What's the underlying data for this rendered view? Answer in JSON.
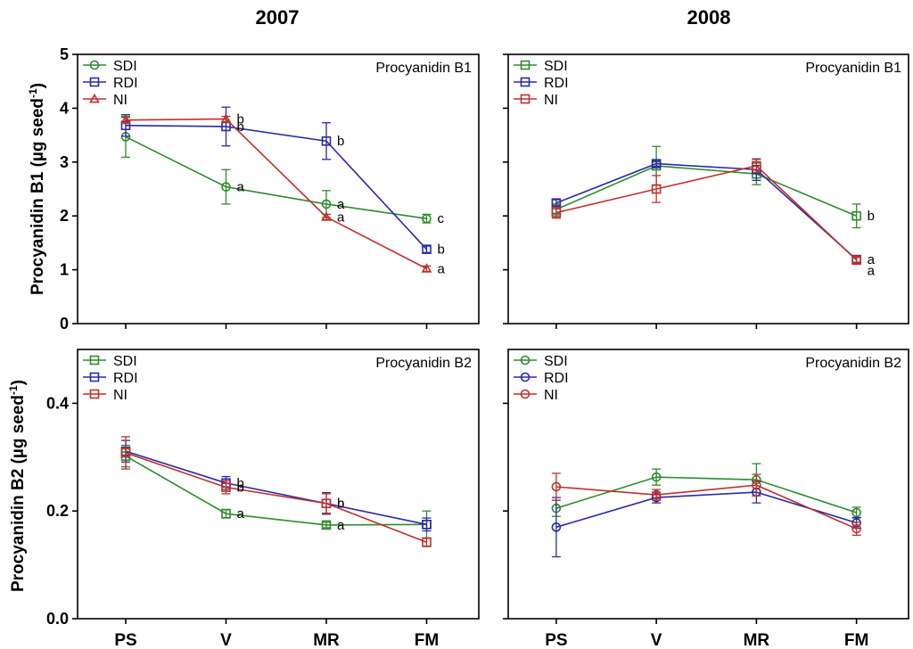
{
  "chart_data": {
    "type": "line",
    "years": [
      "2007",
      "2008"
    ],
    "categories": [
      "PS",
      "V",
      "MR",
      "FM"
    ],
    "row_ylabels": [
      "Procyanidin B1 (µg seed",
      "Procyanidin B2 (µg seed"
    ],
    "ylabel_sup": "-1",
    "ylabel_close": ")",
    "panels": [
      {
        "year": "2007",
        "title": "Procyanidin B1",
        "ylim": [
          0,
          5
        ],
        "yticks": [
          "0",
          "1",
          "2",
          "3",
          "4",
          "5"
        ],
        "ytick_values": [
          0,
          1,
          2,
          3,
          4,
          5
        ],
        "series": [
          {
            "name": "SDI",
            "color": "#2e8b2e",
            "marker": "circle",
            "values": [
              3.47,
              2.54,
              2.22,
              1.95
            ],
            "errors": [
              0.38,
              0.32,
              0.25,
              0.08
            ],
            "sig": [
              "",
              "a",
              "a",
              "c"
            ]
          },
          {
            "name": "RDI",
            "color": "#2a2aa8",
            "marker": "square",
            "values": [
              3.68,
              3.66,
              3.39,
              1.38
            ],
            "errors": [
              0.2,
              0.36,
              0.34,
              0.06
            ],
            "sig": [
              "",
              "b",
              "b",
              "b"
            ]
          },
          {
            "name": "NI",
            "color": "#c0302a",
            "marker": "triangle",
            "values": [
              3.78,
              3.8,
              1.98,
              1.02
            ],
            "errors": [
              0.05,
              0.05,
              0.05,
              0.05
            ],
            "sig": [
              "",
              "b",
              "a",
              "a"
            ]
          }
        ]
      },
      {
        "year": "2008",
        "title": "Procyanidin B1",
        "ylim": [
          0,
          5
        ],
        "yticks": [],
        "ytick_values": [
          0,
          1,
          2,
          3,
          4,
          5
        ],
        "series": [
          {
            "name": "SDI",
            "color": "#2e8b2e",
            "marker": "square",
            "values": [
              2.12,
              2.93,
              2.78,
              2.0
            ],
            "errors": [
              0.1,
              0.36,
              0.2,
              0.22
            ],
            "sig": [
              "",
              "",
              "",
              "b"
            ]
          },
          {
            "name": "RDI",
            "color": "#2a2aa8",
            "marker": "square",
            "values": [
              2.24,
              2.97,
              2.86,
              1.19
            ],
            "errors": [
              0.06,
              0.05,
              0.2,
              0.05
            ],
            "sig": [
              "",
              "",
              "",
              "a"
            ]
          },
          {
            "name": "NI",
            "color": "#c0302a",
            "marker": "square",
            "values": [
              2.06,
              2.5,
              2.93,
              1.18
            ],
            "errors": [
              0.1,
              0.25,
              0.12,
              0.05
            ],
            "sig": [
              "",
              "",
              "",
              "a"
            ]
          }
        ]
      },
      {
        "year": "2007",
        "title": "Procyanidin B2",
        "ylim": [
          0,
          0.5
        ],
        "yticks": [
          "0.0",
          "0.2",
          "0.4"
        ],
        "ytick_values": [
          0,
          0.2,
          0.4
        ],
        "series": [
          {
            "name": "SDI",
            "color": "#2e8b2e",
            "marker": "square",
            "values": [
              0.302,
              0.195,
              0.174,
              0.175
            ],
            "errors": [
              0.02,
              0.008,
              0.005,
              0.025
            ],
            "sig": [
              "",
              "a",
              "a",
              ""
            ]
          },
          {
            "name": "RDI",
            "color": "#2a2aa8",
            "marker": "square",
            "values": [
              0.311,
              0.252,
              0.214,
              0.175
            ],
            "errors": [
              0.02,
              0.012,
              0.02,
              0.012
            ],
            "sig": [
              "",
              "b",
              "b",
              ""
            ]
          },
          {
            "name": "NI",
            "color": "#c0302a",
            "marker": "square",
            "values": [
              0.308,
              0.244,
              0.214,
              0.142
            ],
            "errors": [
              0.03,
              0.012,
              0.018,
              0.008
            ],
            "sig": [
              "",
              "b",
              "b",
              ""
            ]
          }
        ]
      },
      {
        "year": "2008",
        "title": "Procyanidin B2",
        "ylim": [
          0,
          0.5
        ],
        "yticks": [],
        "ytick_values": [
          0,
          0.2,
          0.4
        ],
        "series": [
          {
            "name": "SDI",
            "color": "#2e8b2e",
            "marker": "circle",
            "values": [
              0.205,
              0.263,
              0.258,
              0.197
            ],
            "errors": [
              0.015,
              0.015,
              0.03,
              0.01
            ],
            "sig": [
              "",
              "",
              "",
              ""
            ]
          },
          {
            "name": "RDI",
            "color": "#2a2aa8",
            "marker": "circle",
            "values": [
              0.17,
              0.225,
              0.235,
              0.178
            ],
            "errors": [
              0.055,
              0.01,
              0.02,
              0.01
            ],
            "sig": [
              "",
              "",
              "",
              ""
            ]
          },
          {
            "name": "NI",
            "color": "#c0302a",
            "marker": "circle",
            "values": [
              0.245,
              0.23,
              0.248,
              0.167
            ],
            "errors": [
              0.025,
              0.01,
              0.02,
              0.012
            ],
            "sig": [
              "",
              "",
              "",
              ""
            ]
          }
        ]
      }
    ]
  }
}
